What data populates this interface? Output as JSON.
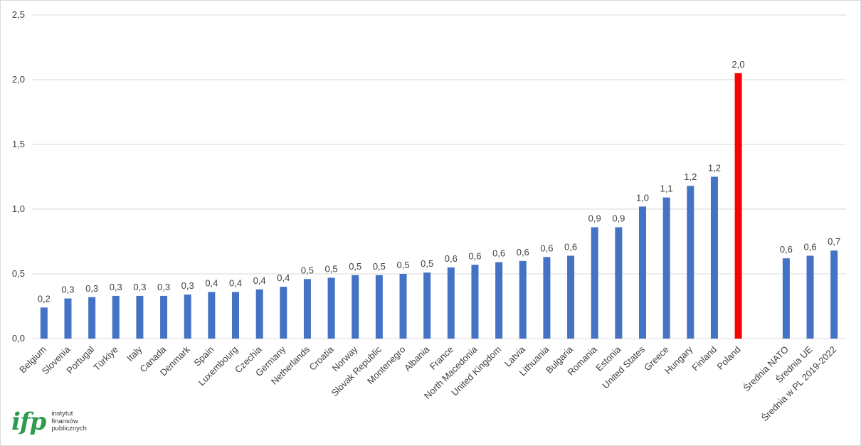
{
  "chart_data": {
    "type": "bar",
    "title": "",
    "xlabel": "",
    "ylabel": "",
    "ylim": [
      0,
      2.5
    ],
    "yticks": [
      "0,0",
      "0,5",
      "1,0",
      "1,5",
      "2,0",
      "2,5"
    ],
    "ytick_values": [
      0,
      0.5,
      1.0,
      1.5,
      2.0,
      2.5
    ],
    "grid": true,
    "legend": "none",
    "categories": [
      "Belgium",
      "Slovenia",
      "Portugal",
      "Türkiye",
      "Italy",
      "Canada",
      "Denmark",
      "Spain",
      "Luxembourg",
      "Czechia",
      "Germany",
      "Netherlands",
      "Croatia",
      "Norway",
      "Slovak Republic",
      "Montenegro",
      "Albania",
      "France",
      "North Macedonia",
      "United Kingdom",
      "Latvia",
      "Lithuania",
      "Bulgaria",
      "Romania",
      "Estonia",
      "United States",
      "Greece",
      "Hungary",
      "Finland",
      "Poland",
      "",
      "Średnia NATO",
      "Średnia UE",
      "Średnia w PL 2019-2022"
    ],
    "values": [
      0.24,
      0.31,
      0.32,
      0.33,
      0.33,
      0.33,
      0.34,
      0.36,
      0.36,
      0.38,
      0.4,
      0.46,
      0.47,
      0.49,
      0.49,
      0.5,
      0.51,
      0.55,
      0.57,
      0.59,
      0.6,
      0.63,
      0.64,
      0.86,
      0.86,
      1.02,
      1.09,
      1.18,
      1.25,
      2.05,
      null,
      0.62,
      0.64,
      0.68
    ],
    "labels": [
      "0,2",
      "0,3",
      "0,3",
      "0,3",
      "0,3",
      "0,3",
      "0,3",
      "0,4",
      "0,4",
      "0,4",
      "0,4",
      "0,5",
      "0,5",
      "0,5",
      "0,5",
      "0,5",
      "0,5",
      "0,6",
      "0,6",
      "0,6",
      "0,6",
      "0,6",
      "0,6",
      "0,9",
      "0,9",
      "1,0",
      "1,1",
      "1,2",
      "1,2",
      "2,0",
      "",
      "0,6",
      "0,6",
      "0,7"
    ],
    "highlight": "Poland",
    "colors": {
      "bar": "#4472c4",
      "highlight": "#ff0000",
      "grid": "#d9d9d9",
      "text": "#404040"
    }
  },
  "logo": {
    "mark": "ifp",
    "line1": "instytut",
    "line2": "finansów",
    "line3": "publicznych"
  }
}
